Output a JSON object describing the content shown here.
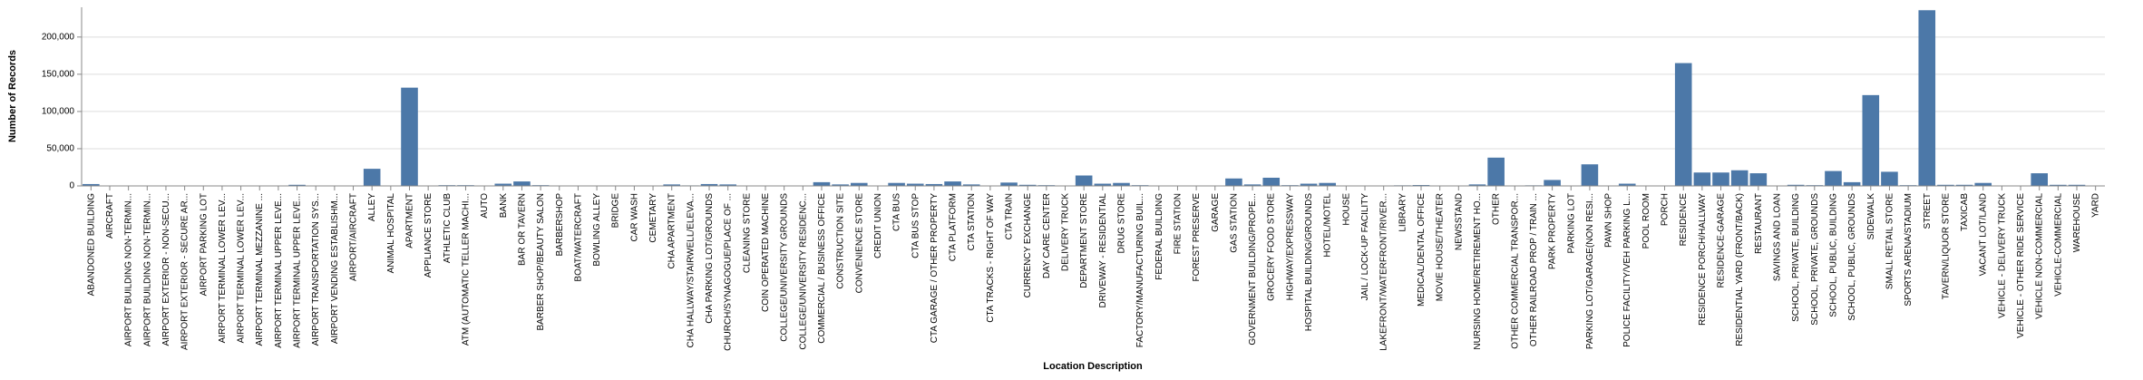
{
  "chart_data": {
    "type": "bar",
    "x_label": "Location Description",
    "y_label": "Number of Records",
    "categories": [
      "ABANDONED BUILDING",
      "AIRCRAFT",
      "AIRPORT BUILDING NON-TERMIN...",
      "AIRPORT BUILDING NON-TERMIN...",
      "AIRPORT EXTERIOR - NON-SECU...",
      "AIRPORT EXTERIOR - SECURE AR...",
      "AIRPORT PARKING LOT",
      "AIRPORT TERMINAL LOWER LEV...",
      "AIRPORT TERMINAL LOWER LEV...",
      "AIRPORT TERMINAL MEZZANINE ...",
      "AIRPORT TERMINAL UPPER LEVE...",
      "AIRPORT TERMINAL UPPER LEVE...",
      "AIRPORT TRANSPORTATION SYS...",
      "AIRPORT VENDING ESTABLISHM...",
      "AIRPORT/AIRCRAFT",
      "ALLEY",
      "ANIMAL HOSPITAL",
      "APARTMENT",
      "APPLIANCE STORE",
      "ATHLETIC CLUB",
      "ATM (AUTOMATIC TELLER MACHI...",
      "AUTO",
      "BANK",
      "BAR OR TAVERN",
      "BARBER SHOP/BEAUTY SALON",
      "BARBERSHOP",
      "BOAT/WATERCRAFT",
      "BOWLING ALLEY",
      "BRIDGE",
      "CAR WASH",
      "CEMETARY",
      "CHA APARTMENT",
      "CHA HALLWAY/STAIRWELL/ELEVA...",
      "CHA PARKING LOT/GROUNDS",
      "CHURCH/SYNAGOGUE/PLACE OF ...",
      "CLEANING STORE",
      "COIN OPERATED MACHINE",
      "COLLEGE/UNIVERSITY GROUNDS",
      "COLLEGE/UNIVERSITY RESIDENC...",
      "COMMERCIAL / BUSINESS OFFICE",
      "CONSTRUCTION SITE",
      "CONVENIENCE STORE",
      "CREDIT UNION",
      "CTA BUS",
      "CTA BUS STOP",
      "CTA GARAGE / OTHER PROPERTY",
      "CTA PLATFORM",
      "CTA STATION",
      "CTA TRACKS - RIGHT OF WAY",
      "CTA TRAIN",
      "CURRENCY EXCHANGE",
      "DAY CARE CENTER",
      "DELIVERY TRUCK",
      "DEPARTMENT STORE",
      "DRIVEWAY - RESIDENTIAL",
      "DRUG STORE",
      "FACTORY/MANUFACTURING BUIL...",
      "FEDERAL BUILDING",
      "FIRE STATION",
      "FOREST PRESERVE",
      "GARAGE",
      "GAS STATION",
      "GOVERNMENT BUILDING/PROPE...",
      "GROCERY FOOD STORE",
      "HIGHWAY/EXPRESSWAY",
      "HOSPITAL BUILDING/GROUNDS",
      "HOTEL/MOTEL",
      "HOUSE",
      "JAIL / LOCK-UP FACILITY",
      "LAKEFRONT/WATERFRONT/RIVER...",
      "LIBRARY",
      "MEDICAL/DENTAL OFFICE",
      "MOVIE HOUSE/THEATER",
      "NEWSSTAND",
      "NURSING HOME/RETIREMENT HO...",
      "OTHER",
      "OTHER COMMERCIAL TRANSPOR...",
      "OTHER RAILROAD PROP / TRAIN ...",
      "PARK PROPERTY",
      "PARKING LOT",
      "PARKING LOT/GARAGE(NON RESI...",
      "PAWN SHOP",
      "POLICE FACILITY/VEH PARKING L...",
      "POOL ROOM",
      "PORCH",
      "RESIDENCE",
      "RESIDENCE PORCH/HALLWAY",
      "RESIDENCE-GARAGE",
      "RESIDENTIAL YARD (FRONT/BACK)",
      "RESTAURANT",
      "SAVINGS AND LOAN",
      "SCHOOL, PRIVATE, BUILDING",
      "SCHOOL, PRIVATE, GROUNDS",
      "SCHOOL, PUBLIC, BUILDING",
      "SCHOOL, PUBLIC, GROUNDS",
      "SIDEWALK",
      "SMALL RETAIL STORE",
      "SPORTS ARENA/STADIUM",
      "STREET",
      "TAVERN/LIQUOR STORE",
      "TAXICAB",
      "VACANT LOT/LAND",
      "VEHICLE - DELIVERY TRUCK",
      "VEHICLE - OTHER RIDE SERVICE",
      "VEHICLE NON-COMMERCIAL",
      "VEHICLE-COMMERCIAL",
      "WAREHOUSE",
      "YARD"
    ],
    "values": [
      2500,
      200,
      300,
      100,
      300,
      200,
      400,
      100,
      200,
      100,
      300,
      1500,
      100,
      100,
      200,
      23000,
      300,
      132000,
      500,
      1000,
      1000,
      300,
      3000,
      6000,
      1000,
      200,
      300,
      300,
      200,
      400,
      100,
      2000,
      700,
      2500,
      2000,
      500,
      300,
      500,
      300,
      5000,
      2000,
      4000,
      300,
      4000,
      3000,
      2500,
      6000,
      2000,
      300,
      4500,
      1500,
      1000,
      500,
      14000,
      3000,
      4000,
      1000,
      300,
      500,
      400,
      500,
      10000,
      2000,
      11000,
      1000,
      3000,
      4000,
      300,
      300,
      300,
      800,
      1200,
      500,
      300,
      2000,
      38000,
      600,
      800,
      8000,
      500,
      29000,
      300,
      3000,
      300,
      300,
      165000,
      18000,
      18000,
      21000,
      17000,
      300,
      1500,
      1000,
      20000,
      5000,
      122000,
      19000,
      1000,
      236000,
      1500,
      1500,
      4000,
      300,
      300,
      17000,
      1500,
      1500,
      300
    ],
    "color": "#4c78a8",
    "ylim": [
      0,
      240000
    ],
    "yticks": [
      0,
      {
        "value": 50000,
        "label": "50,000"
      },
      {
        "value": 100000,
        "label": "100,000"
      },
      {
        "value": 150000,
        "label": "150,000"
      },
      {
        "value": 200000,
        "label": "200,000"
      }
    ],
    "grid": true
  }
}
